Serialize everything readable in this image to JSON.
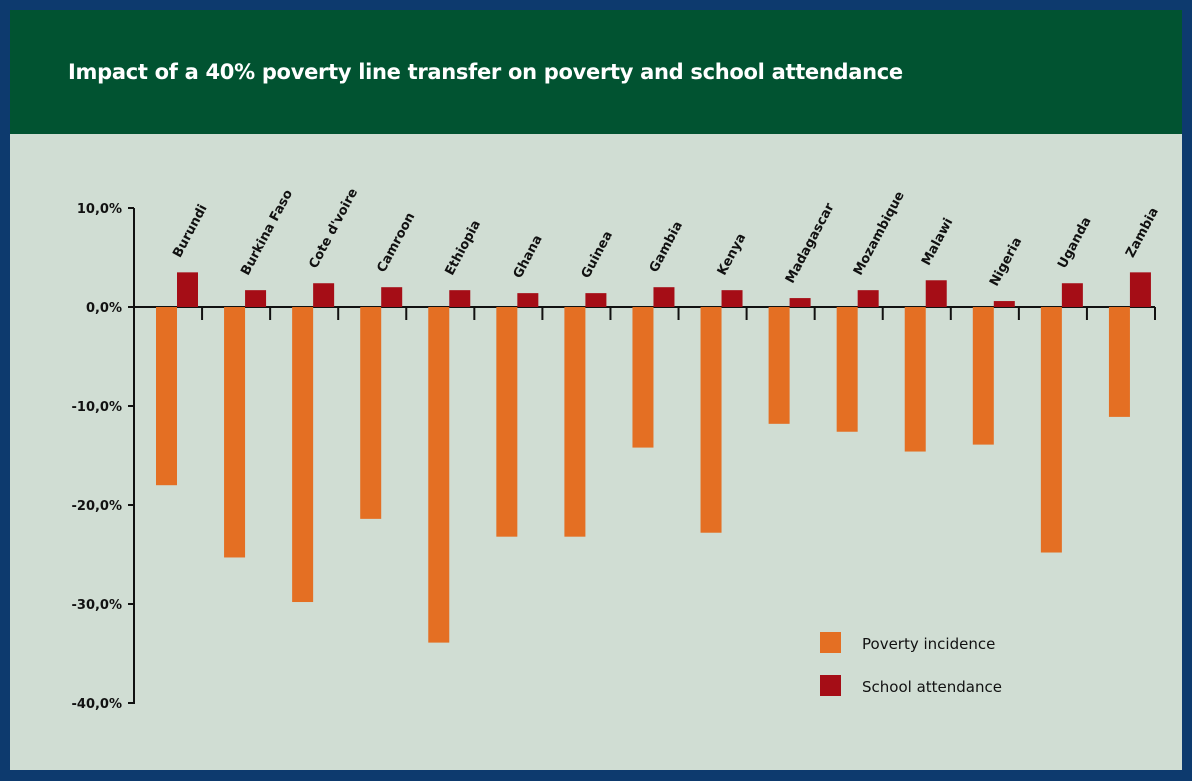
{
  "chart_data": {
    "type": "bar",
    "title": "Impact of a 40% poverty line transfer on poverty and school attendance",
    "categories": [
      "Burundi",
      "Burkina Faso",
      "Cote d'voire",
      "Camroon",
      "Ethiopia",
      "Ghana",
      "Guinea",
      "Gambia",
      "Kenya",
      "Madagascar",
      "Mozambique",
      "Malawi",
      "Nigeria",
      "Uganda",
      "Zambia"
    ],
    "series": [
      {
        "name": "Poverty incidence",
        "color": "#e46f23",
        "values": [
          -18.0,
          -25.3,
          -29.8,
          -21.4,
          -33.9,
          -23.2,
          -23.2,
          -14.2,
          -22.8,
          -11.8,
          -12.6,
          -14.6,
          -13.9,
          -24.8,
          -11.1
        ]
      },
      {
        "name": "School attendance",
        "color": "#a50d16",
        "values": [
          3.5,
          1.7,
          2.4,
          2.0,
          1.7,
          1.4,
          1.4,
          2.0,
          1.7,
          0.9,
          1.7,
          2.7,
          0.6,
          2.4,
          3.5
        ]
      }
    ],
    "ylim": [
      -40,
      10
    ],
    "yticks": [
      10,
      0,
      -10,
      -20,
      -30,
      -40
    ],
    "ytick_labels": [
      "10,0%",
      "0,0%",
      "-10,0%",
      "-20,0%",
      "-30,0%",
      "-40,0%"
    ],
    "xlabel": "",
    "ylabel": "",
    "legend_position": "bottom-right",
    "grid": false
  }
}
